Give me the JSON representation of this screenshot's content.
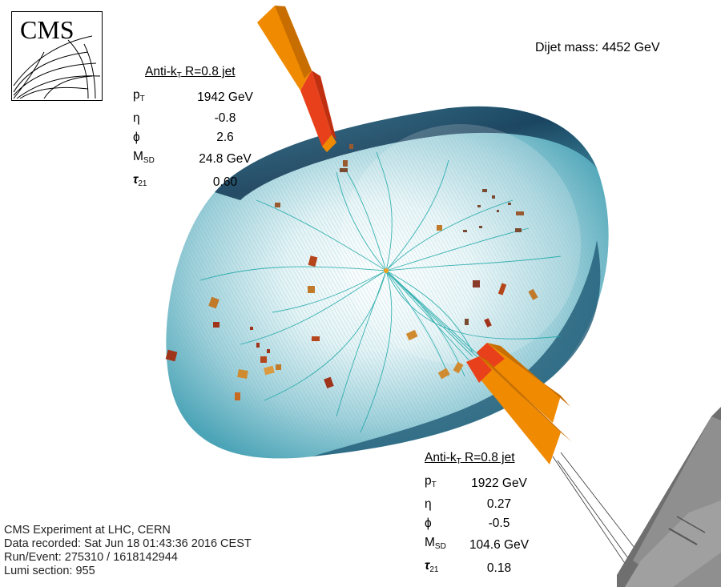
{
  "logo": {
    "text": "CMS"
  },
  "dijet_label": "Dijet mass: 4452 GeV",
  "jets": [
    {
      "title_main": "Anti-k",
      "title_sub": "T",
      "title_rest": " R=0.8 jet",
      "rows": [
        {
          "key_main": "p",
          "key_sub": "T",
          "value": "1942 GeV"
        },
        {
          "key_main": "η",
          "key_sub": "",
          "value": "-0.8"
        },
        {
          "key_main": "ϕ",
          "key_sub": "",
          "value": "2.6"
        },
        {
          "key_main": "M",
          "key_sub": "SD",
          "value": "24.8 GeV"
        },
        {
          "key_main": "τ",
          "key_sub": "21",
          "value": "0.60"
        }
      ]
    },
    {
      "title_main": "Anti-k",
      "title_sub": "T",
      "title_rest": " R=0.8 jet",
      "rows": [
        {
          "key_main": "p",
          "key_sub": "T",
          "value": "1922 GeV"
        },
        {
          "key_main": "η",
          "key_sub": "",
          "value": "0.27"
        },
        {
          "key_main": "ϕ",
          "key_sub": "",
          "value": "-0.5"
        },
        {
          "key_main": "M",
          "key_sub": "SD",
          "value": "104.6 GeV"
        },
        {
          "key_main": "τ",
          "key_sub": "21",
          "value": "0.18"
        }
      ]
    }
  ],
  "info": {
    "line1": "CMS Experiment at LHC, CERN",
    "line2": "Data recorded: Sat Jun 18 01:43:36 2016 CEST",
    "line3": "Run/Event: 275310 / 1618142944",
    "line4": "Lumi section: 955"
  },
  "colors": {
    "barrel_dark": "#0e2f4a",
    "barrel_mid": "#3f9bb0",
    "barrel_light": "#e8f6f8",
    "track": "#1aa6a6",
    "jet_orange": "#f08a00",
    "jet_red": "#e8401a",
    "deposit": "#b8742a",
    "muon_chamber": "#8a8a8a"
  }
}
